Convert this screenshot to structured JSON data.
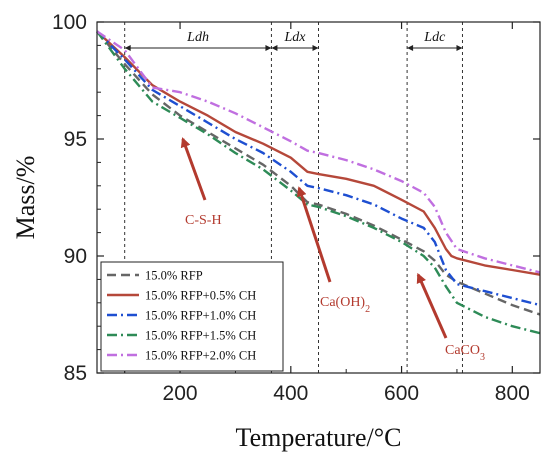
{
  "chart_data": {
    "type": "line",
    "xlabel": "Temperature/°C",
    "ylabel": "Mass/%",
    "xlim": [
      50,
      850
    ],
    "ylim": [
      85,
      100
    ],
    "xticks": [
      200,
      400,
      600,
      800
    ],
    "yticks": [
      85,
      90,
      95,
      100
    ],
    "grid": false,
    "legend_position": "bottom-left",
    "series": [
      {
        "name": "15.0% RFP",
        "color": "#666666",
        "dash": "dash",
        "x": [
          50,
          100,
          150,
          200,
          250,
          300,
          350,
          400,
          430,
          450,
          500,
          550,
          600,
          640,
          660,
          680,
          700,
          750,
          800,
          850
        ],
        "y": [
          99.6,
          98.2,
          96.9,
          96.0,
          95.3,
          94.6,
          93.9,
          93.0,
          92.3,
          92.2,
          91.8,
          91.3,
          90.7,
          90.2,
          89.8,
          89.2,
          88.9,
          88.4,
          87.9,
          87.5
        ]
      },
      {
        "name": "15.0% RFP+0.5% CH",
        "color": "#b5483a",
        "dash": "solid",
        "x": [
          50,
          100,
          150,
          200,
          250,
          300,
          350,
          400,
          430,
          450,
          500,
          550,
          600,
          640,
          660,
          680,
          690,
          700,
          750,
          800,
          850
        ],
        "y": [
          99.6,
          98.5,
          97.3,
          96.6,
          96.0,
          95.3,
          94.8,
          94.2,
          93.6,
          93.5,
          93.3,
          93.0,
          92.4,
          91.9,
          91.2,
          90.3,
          90.0,
          89.9,
          89.6,
          89.4,
          89.2
        ]
      },
      {
        "name": "15.0% RFP+1.0% CH",
        "color": "#1e4fd1",
        "dash": "dashdot",
        "x": [
          50,
          100,
          150,
          200,
          250,
          300,
          350,
          400,
          430,
          450,
          500,
          550,
          600,
          640,
          660,
          680,
          700,
          750,
          800,
          850
        ],
        "y": [
          99.6,
          98.4,
          97.1,
          96.4,
          95.7,
          95.0,
          94.4,
          93.6,
          93.0,
          92.9,
          92.6,
          92.2,
          91.6,
          91.2,
          90.6,
          89.4,
          88.8,
          88.5,
          88.2,
          87.9
        ]
      },
      {
        "name": "15.0% RFP+1.5% CH",
        "color": "#2e8b57",
        "dash": "dashdot",
        "x": [
          50,
          100,
          150,
          200,
          250,
          300,
          350,
          400,
          430,
          450,
          500,
          550,
          600,
          640,
          660,
          680,
          700,
          750,
          800,
          850
        ],
        "y": [
          99.6,
          98.0,
          96.6,
          95.9,
          95.2,
          94.4,
          93.7,
          92.8,
          92.2,
          92.1,
          91.7,
          91.2,
          90.6,
          90.0,
          89.5,
          88.7,
          88.0,
          87.4,
          87.0,
          86.7
        ]
      },
      {
        "name": "15.0% RFP+2.0% CH",
        "color": "#c06fe0",
        "dash": "dashdot",
        "x": [
          50,
          100,
          150,
          200,
          250,
          300,
          350,
          400,
          430,
          450,
          500,
          550,
          600,
          640,
          660,
          680,
          700,
          750,
          800,
          850
        ],
        "y": [
          99.6,
          98.8,
          97.2,
          97.0,
          96.6,
          96.1,
          95.5,
          94.9,
          94.5,
          94.4,
          94.1,
          93.7,
          93.2,
          92.7,
          92.1,
          91.0,
          90.3,
          89.9,
          89.6,
          89.3
        ]
      }
    ],
    "regions": [
      {
        "label": "Ldh",
        "x_start": 100,
        "x_end": 365
      },
      {
        "label": "Ldx",
        "x_start": 365,
        "x_end": 450
      },
      {
        "label": "Ldc",
        "x_start": 610,
        "x_end": 710
      }
    ],
    "annotations": [
      {
        "text": "C-S-H",
        "sub": "",
        "target": [
          205,
          95.0
        ]
      },
      {
        "text": "Ca(OH)",
        "sub": "2",
        "target": [
          415,
          92.9
        ]
      },
      {
        "text": "CaCO",
        "sub": "3",
        "target": [
          630,
          89.2
        ]
      }
    ]
  }
}
